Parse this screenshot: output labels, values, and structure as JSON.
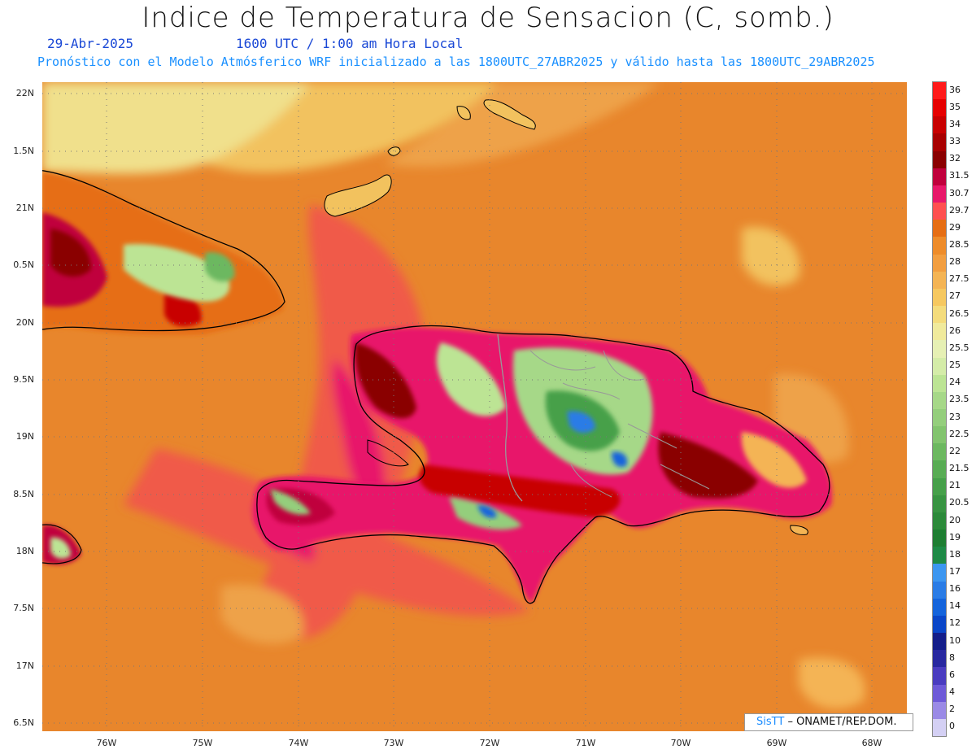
{
  "title": "Indice de Temperatura de Sensacion (C, somb.)",
  "date": "29-Abr-2025",
  "time": "1600 UTC / 1:00 am Hora Local",
  "forecast_note": "Pronóstico con el Modelo Atmósferico WRF inicializado a las 1800UTC_27ABR2025 y válido hasta las  1800UTC_29ABR2025",
  "credit": {
    "brand": "SisTT",
    "org": "– ONAMET/REP.DOM."
  },
  "lat_labels": [
    "22N",
    "1.5N",
    "21N",
    "0.5N",
    "20N",
    "9.5N",
    "19N",
    "8.5N",
    "18N",
    "7.5N",
    "17N",
    "6.5N"
  ],
  "lon_labels": [
    "76W",
    "75W",
    "74W",
    "73W",
    "72W",
    "71W",
    "70W",
    "69W",
    "68W"
  ],
  "colorbar": {
    "labels": [
      "36",
      "35",
      "34",
      "33",
      "32",
      "31.5",
      "30.7",
      "29.7",
      "29",
      "28.5",
      "28",
      "27.5",
      "27",
      "26.5",
      "26",
      "25.5",
      "25",
      "24",
      "23.5",
      "23",
      "22.5",
      "22",
      "21.5",
      "21",
      "20.5",
      "20",
      "19",
      "18",
      "17",
      "16",
      "14",
      "12",
      "10",
      "8",
      "6",
      "4",
      "2",
      "0"
    ],
    "colors": [
      "#ff1a1a",
      "#e60000",
      "#c80000",
      "#a80000",
      "#8a0000",
      "#c0003c",
      "#e8186a",
      "#ff5050",
      "#e66e14",
      "#ee8c2a",
      "#f29e40",
      "#f4b454",
      "#f6c860",
      "#f4dc7c",
      "#f0ea9c",
      "#e6f0b4",
      "#d4eca8",
      "#bce494",
      "#a6d888",
      "#94ce7c",
      "#82c46e",
      "#6cb860",
      "#58ac54",
      "#46a04a",
      "#389442",
      "#2c8a3a",
      "#1e7e32",
      "#1e8a46",
      "#3c96f0",
      "#2a7ce6",
      "#1464dc",
      "#0a46c8",
      "#141e8a",
      "#2828a0",
      "#4a3cc0",
      "#6e5ad8",
      "#9a8ae6",
      "#d4d0f4"
    ]
  }
}
